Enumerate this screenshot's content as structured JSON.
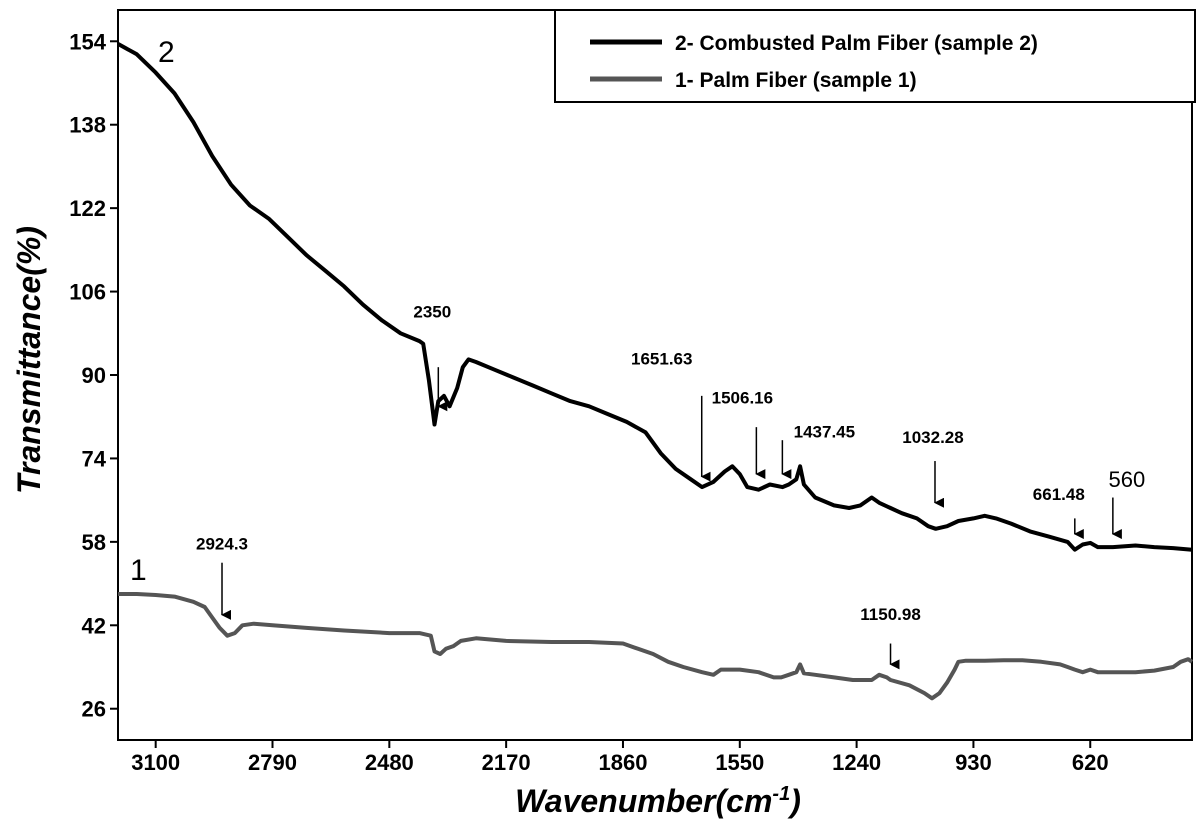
{
  "chart_data": {
    "type": "line",
    "xlabel": "Wavenumber(cm",
    "xlabel_sup": "-1",
    "xlabel_close": ")",
    "ylabel": "Transmittance(%)",
    "xlim": [
      3200,
      350
    ],
    "ylim": [
      20,
      160
    ],
    "x_reversed": true,
    "x_ticks": [
      3100,
      2790,
      2480,
      2170,
      1860,
      1550,
      1240,
      930,
      620
    ],
    "y_ticks": [
      26,
      42,
      58,
      74,
      90,
      106,
      122,
      138,
      154
    ],
    "grid": false,
    "legend_position": "top-right",
    "series": [
      {
        "name": "2- Combusted Palm Fiber (sample 2)",
        "tag": "2",
        "color": "#000000",
        "points": [
          [
            3200,
            153.5
          ],
          [
            3150,
            151.5
          ],
          [
            3100,
            148
          ],
          [
            3050,
            144
          ],
          [
            3000,
            138.5
          ],
          [
            2950,
            132
          ],
          [
            2900,
            126.5
          ],
          [
            2850,
            122.5
          ],
          [
            2800,
            120
          ],
          [
            2750,
            116.5
          ],
          [
            2700,
            113
          ],
          [
            2650,
            110
          ],
          [
            2600,
            107
          ],
          [
            2550,
            103.5
          ],
          [
            2500,
            100.5
          ],
          [
            2450,
            98
          ],
          [
            2400,
            96.5
          ],
          [
            2390,
            96
          ],
          [
            2375,
            89
          ],
          [
            2360,
            80.5
          ],
          [
            2350,
            85
          ],
          [
            2335,
            86
          ],
          [
            2320,
            84
          ],
          [
            2300,
            87.5
          ],
          [
            2285,
            91.5
          ],
          [
            2270,
            93
          ],
          [
            2250,
            92.5
          ],
          [
            2200,
            91
          ],
          [
            2150,
            89.5
          ],
          [
            2100,
            88
          ],
          [
            2050,
            86.5
          ],
          [
            2000,
            85
          ],
          [
            1950,
            84
          ],
          [
            1900,
            82.5
          ],
          [
            1850,
            81
          ],
          [
            1800,
            79
          ],
          [
            1760,
            75
          ],
          [
            1720,
            72
          ],
          [
            1680,
            70
          ],
          [
            1650,
            68.5
          ],
          [
            1620,
            69.5
          ],
          [
            1590,
            71.5
          ],
          [
            1570,
            72.5
          ],
          [
            1550,
            71
          ],
          [
            1530,
            68.5
          ],
          [
            1500,
            68
          ],
          [
            1470,
            69
          ],
          [
            1437,
            68.5
          ],
          [
            1420,
            69
          ],
          [
            1400,
            70
          ],
          [
            1390,
            72.5
          ],
          [
            1380,
            69
          ],
          [
            1350,
            66.5
          ],
          [
            1300,
            65
          ],
          [
            1260,
            64.5
          ],
          [
            1230,
            65
          ],
          [
            1200,
            66.5
          ],
          [
            1180,
            65.5
          ],
          [
            1150,
            64.5
          ],
          [
            1120,
            63.5
          ],
          [
            1080,
            62.5
          ],
          [
            1050,
            61
          ],
          [
            1030,
            60.5
          ],
          [
            1000,
            61
          ],
          [
            970,
            62
          ],
          [
            930,
            62.5
          ],
          [
            900,
            63
          ],
          [
            870,
            62.5
          ],
          [
            830,
            61.5
          ],
          [
            780,
            60
          ],
          [
            730,
            59
          ],
          [
            680,
            58
          ],
          [
            661,
            56.5
          ],
          [
            640,
            57.5
          ],
          [
            620,
            57.8
          ],
          [
            600,
            57
          ],
          [
            560,
            57
          ],
          [
            500,
            57.3
          ],
          [
            450,
            57
          ],
          [
            400,
            56.8
          ],
          [
            350,
            56.5
          ]
        ]
      },
      {
        "name": "1- Palm Fiber (sample 1)",
        "tag": "1",
        "color": "#555555",
        "points": [
          [
            3200,
            48
          ],
          [
            3150,
            48
          ],
          [
            3100,
            47.8
          ],
          [
            3050,
            47.5
          ],
          [
            3000,
            46.5
          ],
          [
            2970,
            45.5
          ],
          [
            2950,
            43.5
          ],
          [
            2930,
            41.5
          ],
          [
            2910,
            40
          ],
          [
            2890,
            40.5
          ],
          [
            2870,
            42
          ],
          [
            2840,
            42.3
          ],
          [
            2790,
            42
          ],
          [
            2700,
            41.5
          ],
          [
            2600,
            41
          ],
          [
            2480,
            40.5
          ],
          [
            2400,
            40.5
          ],
          [
            2370,
            40
          ],
          [
            2360,
            37
          ],
          [
            2345,
            36.5
          ],
          [
            2330,
            37.5
          ],
          [
            2310,
            38
          ],
          [
            2290,
            39
          ],
          [
            2250,
            39.5
          ],
          [
            2170,
            39
          ],
          [
            2050,
            38.8
          ],
          [
            1950,
            38.8
          ],
          [
            1860,
            38.5
          ],
          [
            1820,
            37.5
          ],
          [
            1780,
            36.5
          ],
          [
            1740,
            35
          ],
          [
            1700,
            34
          ],
          [
            1650,
            33
          ],
          [
            1620,
            32.5
          ],
          [
            1600,
            33.5
          ],
          [
            1550,
            33.5
          ],
          [
            1500,
            33
          ],
          [
            1460,
            32
          ],
          [
            1440,
            32
          ],
          [
            1420,
            32.5
          ],
          [
            1400,
            33
          ],
          [
            1390,
            34.5
          ],
          [
            1380,
            32.8
          ],
          [
            1350,
            32.5
          ],
          [
            1300,
            32
          ],
          [
            1250,
            31.5
          ],
          [
            1200,
            31.5
          ],
          [
            1180,
            32.5
          ],
          [
            1160,
            32
          ],
          [
            1150,
            31.5
          ],
          [
            1100,
            30.5
          ],
          [
            1060,
            29
          ],
          [
            1040,
            28
          ],
          [
            1020,
            29
          ],
          [
            1000,
            31
          ],
          [
            980,
            33.5
          ],
          [
            970,
            35
          ],
          [
            950,
            35.2
          ],
          [
            900,
            35.2
          ],
          [
            850,
            35.3
          ],
          [
            800,
            35.3
          ],
          [
            750,
            35
          ],
          [
            700,
            34.5
          ],
          [
            680,
            34
          ],
          [
            661,
            33.5
          ],
          [
            640,
            33
          ],
          [
            620,
            33.5
          ],
          [
            600,
            33
          ],
          [
            550,
            33
          ],
          [
            500,
            33
          ],
          [
            450,
            33.3
          ],
          [
            400,
            34
          ],
          [
            380,
            35
          ],
          [
            360,
            35.5
          ],
          [
            350,
            35
          ]
        ]
      }
    ],
    "annotations": [
      {
        "label": "2350",
        "x": 2350,
        "y_start": 91.5,
        "y_end": 84,
        "text_y": 101,
        "text_dx": -6,
        "bold": true
      },
      {
        "label": "1651.63",
        "x": 1651,
        "y_start": 86,
        "y_end": 70.5,
        "text_y": 92,
        "text_dx": -40,
        "bold": true
      },
      {
        "label": "1506.16",
        "x": 1506,
        "y_start": 80,
        "y_end": 71,
        "text_y": 84.5,
        "text_dx": -14,
        "bold": true
      },
      {
        "label": "1437.45",
        "x": 1437,
        "y_start": 77.5,
        "y_end": 71,
        "text_y": 78,
        "text_dx": 42,
        "bold": true
      },
      {
        "label": "1032.28",
        "x": 1032,
        "y_start": 73.5,
        "y_end": 65.5,
        "text_y": 77,
        "text_dx": -2,
        "bold": true
      },
      {
        "label": "661.48",
        "x": 661,
        "y_start": 62.5,
        "y_end": 59.5,
        "text_y": 66,
        "text_dx": -16,
        "bold": true
      },
      {
        "label": "560",
        "x": 560,
        "y_start": 66.5,
        "y_end": 59.5,
        "text_y": 68.5,
        "text_dx": 14,
        "bold": false
      },
      {
        "label": "2924.3",
        "x": 2924,
        "y_start": 54,
        "y_end": 44,
        "text_y": 56.5,
        "text_dx": 0,
        "bold": true
      },
      {
        "label": "1150.98",
        "x": 1150,
        "y_start": 38.5,
        "y_end": 34.5,
        "text_y": 43,
        "text_dx": 0,
        "bold": true
      }
    ]
  }
}
